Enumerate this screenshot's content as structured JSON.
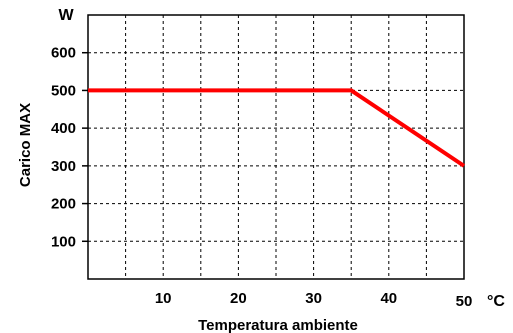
{
  "chart_data": {
    "type": "line",
    "title": "",
    "xlabel": "Temperatura ambiente",
    "ylabel": "Carico MAX",
    "x_unit": "°C",
    "y_unit": "W",
    "xlim": [
      0,
      50
    ],
    "ylim": [
      0,
      700
    ],
    "x_ticks": [
      10,
      20,
      30,
      40,
      50
    ],
    "y_ticks": [
      100,
      200,
      300,
      400,
      500,
      600
    ],
    "grid": true,
    "legend": "none",
    "series": [
      {
        "x": [
          0,
          35,
          50
        ],
        "y": [
          500,
          500,
          300
        ],
        "color": "#ff0000"
      }
    ]
  }
}
